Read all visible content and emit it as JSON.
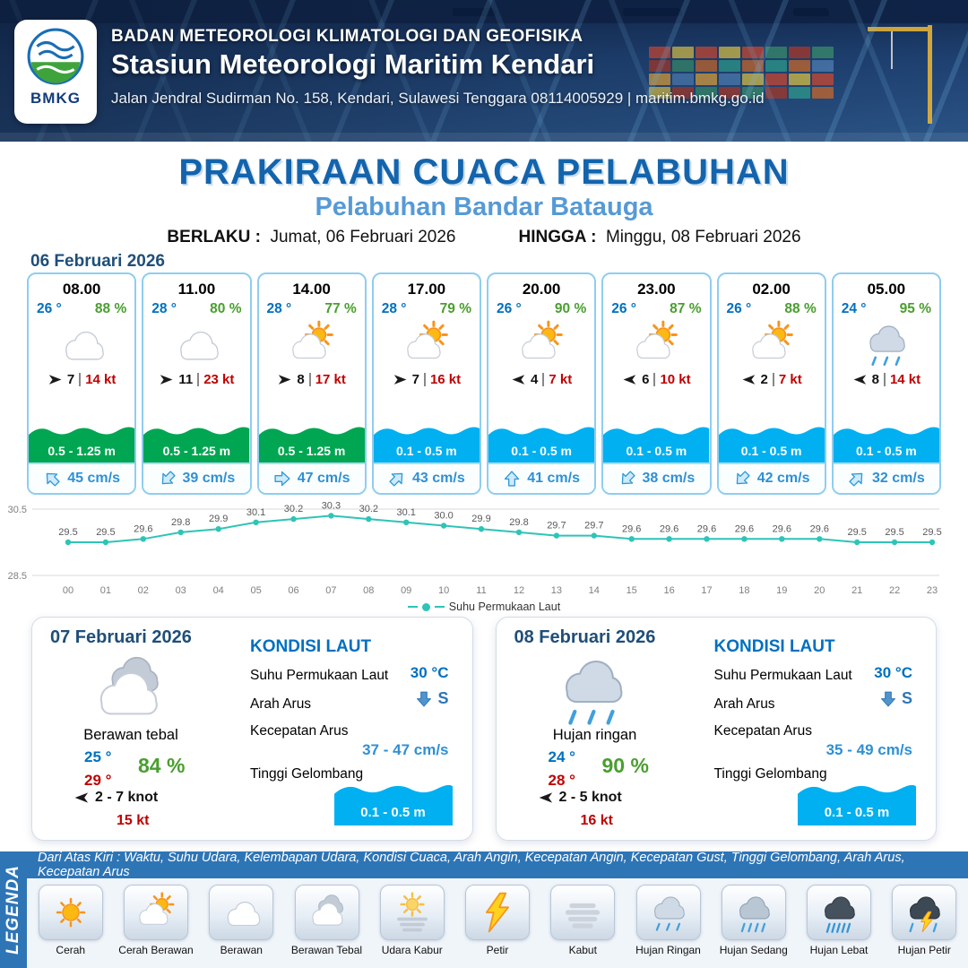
{
  "colors": {
    "wave_green": "#00a651",
    "wave_blue": "#00b0f0",
    "accent_blue": "#2e75b6"
  },
  "header": {
    "logo_text": "BMKG",
    "agency": "BADAN METEOROLOGI KLIMATOLOGI DAN GEOFISIKA",
    "station": "Stasiun Meteorologi Maritim Kendari",
    "address": "Jalan Jendral Sudirman No. 158, Kendari, Sulawesi Tenggara  08114005929 | maritim.bmkg.go.id"
  },
  "title": {
    "main": "PRAKIRAAN CUACA PELABUHAN",
    "subtitle": "Pelabuhan Bandar Batauga",
    "valid_from_label": "BERLAKU :",
    "valid_from": "Jumat, 06 Februari 2026",
    "valid_to_label": "HINGGA :",
    "valid_to": "Minggu, 08 Februari 2026"
  },
  "forecast_date": "06 Februari 2026",
  "forecast_cards": [
    {
      "time": "08.00",
      "temp": "26 °",
      "humidity": "88 %",
      "icon": "berawan",
      "wind_dir": "E",
      "wind_speed": "7",
      "gust": "14 kt",
      "wave_height": "0.5 - 1.25 m",
      "wave_color": "green",
      "current_dir": "NW",
      "current_speed": "45 cm/s"
    },
    {
      "time": "11.00",
      "temp": "28 °",
      "humidity": "80 %",
      "icon": "berawan",
      "wind_dir": "E",
      "wind_speed": "11",
      "gust": "23 kt",
      "wave_height": "0.5 - 1.25 m",
      "wave_color": "green",
      "current_dir": "SW",
      "current_speed": "39 cm/s"
    },
    {
      "time": "14.00",
      "temp": "28 °",
      "humidity": "77 %",
      "icon": "cerah-berawan",
      "wind_dir": "E",
      "wind_speed": "8",
      "gust": "17 kt",
      "wave_height": "0.5 - 1.25 m",
      "wave_color": "green",
      "current_dir": "E",
      "current_speed": "47 cm/s"
    },
    {
      "time": "17.00",
      "temp": "28 °",
      "humidity": "79 %",
      "icon": "cerah-berawan",
      "wind_dir": "E",
      "wind_speed": "7",
      "gust": "16 kt",
      "wave_height": "0.1 - 0.5 m",
      "wave_color": "blue",
      "current_dir": "NE",
      "current_speed": "43 cm/s"
    },
    {
      "time": "20.00",
      "temp": "26 °",
      "humidity": "90 %",
      "icon": "cerah-berawan",
      "wind_dir": "W",
      "wind_speed": "4",
      "gust": "7 kt",
      "wave_height": "0.1 - 0.5 m",
      "wave_color": "blue",
      "current_dir": "N",
      "current_speed": "41 cm/s"
    },
    {
      "time": "23.00",
      "temp": "26 °",
      "humidity": "87 %",
      "icon": "cerah-berawan",
      "wind_dir": "W",
      "wind_speed": "6",
      "gust": "10 kt",
      "wave_height": "0.1 - 0.5 m",
      "wave_color": "blue",
      "current_dir": "SW",
      "current_speed": "38 cm/s"
    },
    {
      "time": "02.00",
      "temp": "26 °",
      "humidity": "88 %",
      "icon": "cerah-berawan",
      "wind_dir": "W",
      "wind_speed": "2",
      "gust": "7 kt",
      "wave_height": "0.1 - 0.5 m",
      "wave_color": "blue",
      "current_dir": "SW",
      "current_speed": "42 cm/s"
    },
    {
      "time": "05.00",
      "temp": "24 °",
      "humidity": "95 %",
      "icon": "hujan-ringan",
      "wind_dir": "W",
      "wind_speed": "8",
      "gust": "14 kt",
      "wave_height": "0.1 - 0.5 m",
      "wave_color": "blue",
      "current_dir": "NE",
      "current_speed": "32 cm/s"
    }
  ],
  "chart_data": {
    "type": "line",
    "legend_label": "Suhu Permukaan Laut",
    "x": [
      "00",
      "01",
      "02",
      "03",
      "04",
      "05",
      "06",
      "07",
      "08",
      "09",
      "10",
      "11",
      "12",
      "13",
      "14",
      "15",
      "16",
      "17",
      "18",
      "19",
      "20",
      "21",
      "22",
      "23"
    ],
    "values": [
      29.5,
      29.5,
      29.6,
      29.8,
      29.9,
      30.1,
      30.2,
      30.3,
      30.2,
      30.1,
      30.0,
      29.9,
      29.8,
      29.7,
      29.7,
      29.6,
      29.6,
      29.6,
      29.6,
      29.6,
      29.6,
      29.5,
      29.5,
      29.5
    ],
    "ylim": [
      28.5,
      30.5
    ],
    "line_color": "#2ec4b6"
  },
  "daily": [
    {
      "date": "07 Februari 2026",
      "icon": "berawan-tebal",
      "condition": "Berawan tebal",
      "temp_min": "25 °",
      "temp_max": "29 °",
      "humidity": "84 %",
      "wind_dir": "W",
      "wind": "2 - 7 knot",
      "gust": "15 kt",
      "sea": {
        "heading": "KONDISI LAUT",
        "sst_label": "Suhu Permukaan Laut",
        "sst": "30 °C",
        "current_dir_label": "Arah Arus",
        "current_dir": "S",
        "current_speed_label": "Kecepatan Arus",
        "current_speed": "37 - 47 cm/s",
        "wave_label": "Tinggi Gelombang",
        "wave": "0.1 - 0.5 m"
      }
    },
    {
      "date": "08 Februari 2026",
      "icon": "hujan-ringan",
      "condition": "Hujan ringan",
      "temp_min": "24 °",
      "temp_max": "28 °",
      "humidity": "90 %",
      "wind_dir": "W",
      "wind": "2 - 5 knot",
      "gust": "16 kt",
      "sea": {
        "heading": "KONDISI LAUT",
        "sst_label": "Suhu Permukaan Laut",
        "sst": "30 °C",
        "current_dir_label": "Arah Arus",
        "current_dir": "S",
        "current_speed_label": "Kecepatan Arus",
        "current_speed": "35 - 49 cm/s",
        "wave_label": "Tinggi Gelombang",
        "wave": "0.1 - 0.5 m"
      }
    }
  ],
  "legend": {
    "band_text": "Dari Atas Kiri : Waktu, Suhu Udara, Kelembapan Udara, Kondisi Cuaca, Arah Angin, Kecepatan Angin, Kecepatan Gust, Tinggi Gelombang, Arah Arus, Kecepatan Arus",
    "side_label": "LEGENDA",
    "items": [
      {
        "icon": "cerah",
        "label": "Cerah"
      },
      {
        "icon": "cerah-berawan",
        "label": "Cerah Berawan"
      },
      {
        "icon": "berawan",
        "label": "Berawan"
      },
      {
        "icon": "berawan-tebal",
        "label": "Berawan Tebal"
      },
      {
        "icon": "udara-kabur",
        "label": "Udara Kabur"
      },
      {
        "icon": "petir",
        "label": "Petir"
      },
      {
        "icon": "kabut",
        "label": "Kabut"
      },
      {
        "icon": "hujan-ringan",
        "label": "Hujan Ringan"
      },
      {
        "icon": "hujan-sedang",
        "label": "Hujan Sedang"
      },
      {
        "icon": "hujan-lebat",
        "label": "Hujan Lebat"
      },
      {
        "icon": "hujan-petir",
        "label": "Hujan Petir"
      }
    ]
  }
}
